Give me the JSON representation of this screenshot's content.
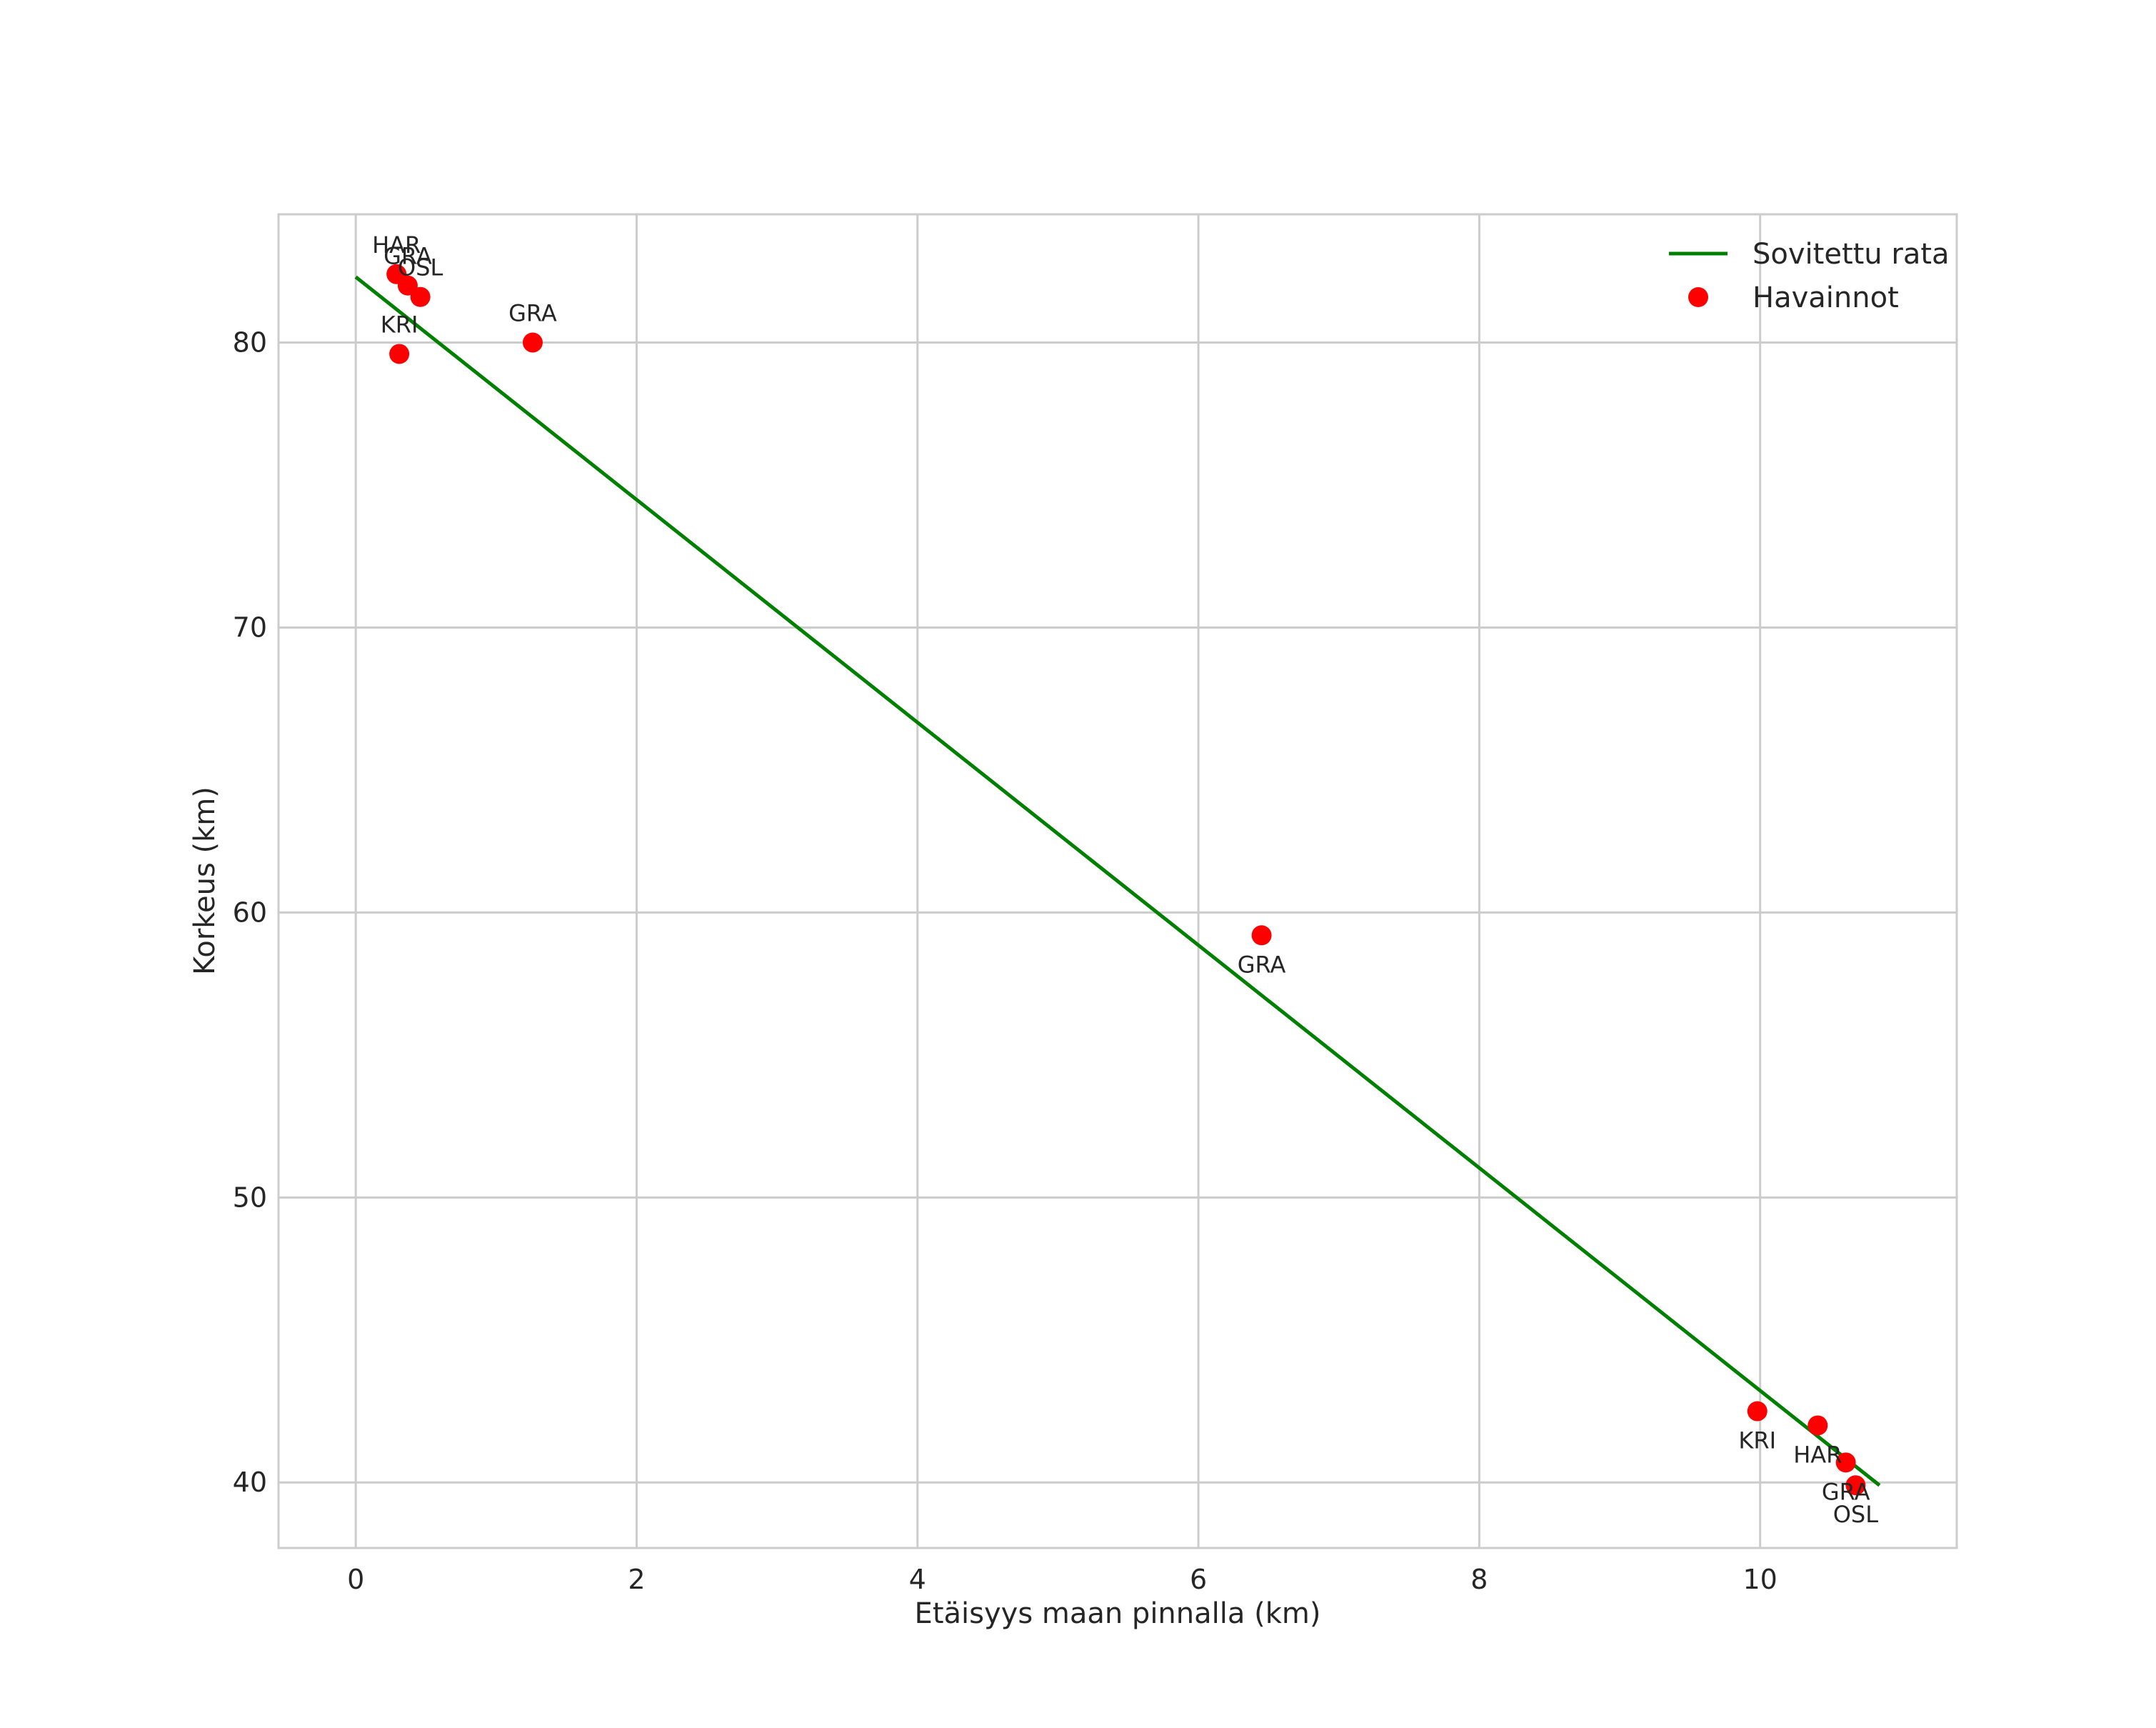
{
  "chart_data": {
    "type": "scatter",
    "title": "",
    "xlabel": "Etäisyys maan pinnalla (km)",
    "ylabel": "Korkeus (km)",
    "xlim": [
      -0.55,
      11.4
    ],
    "ylim": [
      37.7,
      84.5
    ],
    "xticks": [
      0,
      2,
      4,
      6,
      8,
      10
    ],
    "yticks": [
      40,
      50,
      60,
      70,
      80
    ],
    "grid": true,
    "legend_position": "top-right",
    "series": [
      {
        "name": "Sovitettu rata",
        "kind": "line",
        "color": "#008000",
        "x": [
          0,
          10.85
        ],
        "y": [
          82.3,
          39.9
        ]
      },
      {
        "name": "Havainnot",
        "kind": "scatter",
        "color": "#ff0000",
        "points": [
          {
            "x": 0.29,
            "y": 82.4,
            "label": "HAR",
            "label_pos": "above"
          },
          {
            "x": 0.37,
            "y": 82.0,
            "label": "GRA",
            "label_pos": "above"
          },
          {
            "x": 0.46,
            "y": 81.6,
            "label": "OSL",
            "label_pos": "above"
          },
          {
            "x": 0.31,
            "y": 79.6,
            "label": "KRI",
            "label_pos": "above"
          },
          {
            "x": 1.26,
            "y": 80.0,
            "label": "GRA",
            "label_pos": "above"
          },
          {
            "x": 6.45,
            "y": 59.2,
            "label": "GRA",
            "label_pos": "below"
          },
          {
            "x": 9.98,
            "y": 42.5,
            "label": "KRI",
            "label_pos": "below"
          },
          {
            "x": 10.41,
            "y": 42.0,
            "label": "HAR",
            "label_pos": "below"
          },
          {
            "x": 10.61,
            "y": 40.7,
            "label": "GRA",
            "label_pos": "below"
          },
          {
            "x": 10.68,
            "y": 39.9,
            "label": "OSL",
            "label_pos": "below"
          }
        ]
      }
    ]
  }
}
